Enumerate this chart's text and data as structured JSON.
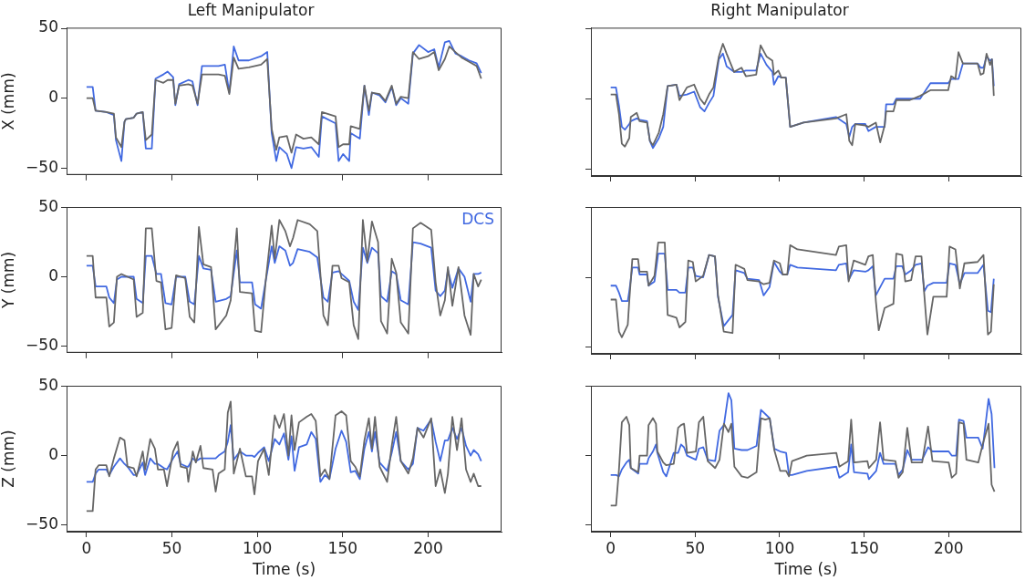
{
  "chart_data": [
    {
      "type": "line",
      "title": "Left Manipulator",
      "ylabel": "X (mm)",
      "tick_labels": "y",
      "xlim": [
        -11.7,
        243
      ],
      "ylim": [
        -54.9,
        50.4
      ],
      "xticks": [
        0,
        50,
        100,
        150,
        200
      ],
      "yticks": [
        -50,
        0,
        50
      ],
      "x": [
        0,
        3.6,
        5.3,
        11.6,
        16,
        17.2,
        20.4,
        22.2,
        23,
        27.6,
        29.3,
        32.9,
        34.7,
        38.2,
        40.4,
        45,
        47.5,
        50.7,
        52,
        54.2,
        59.6,
        62,
        65,
        67.6,
        77.3,
        81,
        83.6,
        86.2,
        89,
        95,
        102.2,
        105.8,
        108.4,
        111.1,
        112.9,
        117.3,
        120,
        122.7,
        127,
        131.6,
        136,
        137.8,
        145.8,
        147.6,
        150.2,
        153.8,
        154.7,
        160,
        162.7,
        165.3,
        167.1,
        171.6,
        175,
        178.7,
        181.3,
        184,
        188.4,
        191.1,
        194.7,
        200,
        203.6,
        206.2,
        209.8,
        212.4,
        216,
        219.6,
        224,
        228.4,
        231.1
      ],
      "series": [
        {
          "color": "#666666",
          "values": [
            0,
            0,
            -9,
            -10,
            -11,
            -28,
            -35,
            -17,
            -15,
            -14,
            -11,
            -10,
            -30,
            -26,
            13,
            11,
            13,
            13,
            -4,
            9,
            10,
            9,
            -4,
            17,
            17,
            16,
            3,
            29,
            21,
            22,
            24,
            28,
            -22,
            -37,
            -28,
            -27,
            -39,
            -26,
            -29,
            -28,
            -33,
            -10,
            -13,
            -35,
            -33,
            -33,
            -20,
            -22,
            9,
            -9,
            4,
            3,
            -2,
            9,
            -4,
            1,
            0,
            33,
            28,
            30,
            33,
            20,
            28,
            37,
            33,
            29,
            26,
            23,
            14
          ]
        },
        {
          "color": "#4169e1",
          "values": [
            8,
            8,
            -9,
            -10,
            -12,
            -30,
            -45,
            -17,
            -15,
            -14,
            -11,
            -10,
            -36,
            -36,
            14,
            17,
            19,
            15,
            -5,
            10,
            13,
            12,
            -5,
            23,
            23,
            24,
            4,
            37,
            27,
            27,
            30,
            33,
            -25,
            -45,
            -35,
            -40,
            -50,
            -35,
            -36,
            -35,
            -42,
            -13,
            -18,
            -45,
            -40,
            -45,
            -25,
            -29,
            9,
            -12,
            4,
            2,
            -3,
            8,
            -5,
            0,
            -4,
            32,
            38,
            33,
            35,
            22,
            40,
            41,
            32,
            30,
            27,
            25,
            18
          ]
        }
      ]
    },
    {
      "type": "line",
      "title": "Right Manipulator",
      "tick_labels": false,
      "xlim": [
        -11.7,
        243
      ],
      "ylim": [
        -54.9,
        50.4
      ],
      "xticks": [
        0,
        50,
        100,
        150,
        200
      ],
      "yticks": [
        -50,
        0,
        50
      ],
      "x": [
        0,
        3.1,
        4.9,
        6.6,
        8.4,
        11,
        11.9,
        15.4,
        17.1,
        21.5,
        23.2,
        25,
        28.5,
        31.1,
        33.7,
        38.9,
        40.7,
        45.1,
        49.4,
        52.9,
        55.5,
        58.2,
        60.8,
        64,
        66.4,
        68.6,
        73,
        77.4,
        80,
        86.1,
        88.7,
        92.2,
        95.7,
        96.6,
        99.2,
        101,
        103.6,
        106.2,
        114.1,
        133.3,
        139.4,
        141.2,
        142.9,
        144.7,
        150.7,
        152.5,
        156.9,
        159.5,
        162.1,
        163,
        167.3,
        169,
        177,
        183.1,
        189.2,
        199.7,
        201.5,
        204,
        205.8,
        208.4,
        217.1,
        218.9,
        220.6,
        222.4,
        224.5,
        225.6,
        226.7
      ],
      "series": [
        {
          "color": "#666666",
          "values": [
            3,
            3,
            -11,
            -32,
            -34,
            -28,
            -13,
            -10,
            -16,
            -17,
            -30,
            -33,
            -24,
            -11,
            9,
            10,
            -1,
            8,
            10,
            0,
            -4,
            3,
            8,
            30,
            39,
            32,
            19,
            22,
            16,
            17,
            38,
            30,
            27,
            17,
            20,
            15,
            15,
            -20,
            -17,
            -14,
            -11,
            -30,
            -33,
            -18,
            -19,
            -20,
            -17,
            -31,
            -19,
            -9,
            -9,
            -1,
            -1,
            2,
            6,
            6,
            16,
            14,
            33,
            25,
            25,
            17,
            18,
            32,
            24,
            28,
            2
          ]
        },
        {
          "color": "#4169e1",
          "values": [
            8,
            8,
            -5,
            -20,
            -22,
            -18,
            -16,
            -14,
            -15,
            -16,
            -30,
            -35,
            -28,
            -20,
            9,
            10,
            2,
            3,
            5,
            -6,
            -9,
            -3,
            2,
            28,
            32,
            23,
            19,
            19,
            20,
            20,
            32,
            24,
            19,
            10,
            16,
            15,
            15,
            -20,
            -17,
            -13,
            -18,
            -27,
            -20,
            -18,
            -18,
            -23,
            -20,
            -20,
            -20,
            -4,
            -4,
            0,
            0,
            0,
            11,
            11,
            14,
            14,
            14,
            25,
            25,
            22,
            22,
            30,
            27,
            28,
            9
          ]
        }
      ]
    },
    {
      "type": "line",
      "ylabel": "Y (mm)",
      "tick_labels": "y",
      "legend": "top right",
      "xlim": [
        -11.7,
        243
      ],
      "ylim": [
        -54.9,
        50.4
      ],
      "xticks": [
        0,
        50,
        100,
        150,
        200
      ],
      "yticks": [
        -50,
        0,
        50
      ],
      "x": [
        0,
        3.6,
        5.3,
        11.6,
        13.3,
        16,
        17.8,
        20.4,
        27.6,
        29.3,
        32.9,
        34.7,
        38.2,
        40.9,
        43.6,
        46.2,
        49.8,
        52.4,
        57.8,
        60.4,
        63.1,
        65.8,
        68.4,
        72.9,
        75.6,
        81.8,
        84.4,
        88,
        89.8,
        96.9,
        98.7,
        102.2,
        104.9,
        108.4,
        110.2,
        112.9,
        116.4,
        119.1,
        120.9,
        123.6,
        130.7,
        135.1,
        138.7,
        141.3,
        144,
        147.6,
        149.3,
        153.8,
        156.4,
        159.1,
        161.8,
        164.4,
        167.1,
        170.7,
        172.4,
        176,
        178.7,
        181.3,
        184,
        188.4,
        191.1,
        195.6,
        201.8,
        204.4,
        207.1,
        209.8,
        211.6,
        214.2,
        217.8,
        221.3,
        224.9,
        226.7,
        229.3,
        231.1
      ],
      "series": [
        {
          "color": "#666666",
          "values": [
            15,
            15,
            -15,
            -15,
            -36,
            -33,
            0,
            2,
            -2,
            -29,
            -26,
            35,
            35,
            -3,
            -4,
            -38,
            -37,
            1,
            -1,
            -29,
            -33,
            36,
            9,
            7,
            -38,
            -28,
            -17,
            35,
            -11,
            -12,
            -39,
            -40,
            -3,
            37,
            13,
            41,
            33,
            22,
            28,
            41,
            38,
            33,
            -28,
            -35,
            8,
            8,
            -1,
            -4,
            -35,
            -45,
            41,
            11,
            40,
            25,
            -32,
            -41,
            13,
            3,
            -33,
            -41,
            35,
            39,
            34,
            -4,
            -28,
            -17,
            7,
            -21,
            7,
            -28,
            -42,
            2,
            -7,
            -2
          ]
        },
        {
          "name": "DCS",
          "color": "#4169e1",
          "values": [
            8,
            8,
            -7,
            -7,
            -15,
            -19,
            -2,
            0,
            0,
            -16,
            -19,
            15,
            15,
            2,
            2,
            -19,
            -20,
            0,
            0,
            -18,
            -20,
            15,
            6,
            5,
            -18,
            -16,
            -14,
            19,
            -4,
            -4,
            -20,
            -23,
            -3,
            22,
            10,
            22,
            19,
            8,
            10,
            20,
            18,
            14,
            -15,
            -18,
            3,
            4,
            2,
            -3,
            -18,
            -24,
            21,
            10,
            21,
            17,
            -14,
            -18,
            4,
            2,
            -17,
            -20,
            25,
            24,
            21,
            -10,
            -14,
            -10,
            5,
            -8,
            6,
            0,
            -18,
            2,
            2,
            3
          ]
        }
      ]
    },
    {
      "type": "line",
      "tick_labels": false,
      "xlim": [
        -11.7,
        243
      ],
      "ylim": [
        -54.9,
        50.4
      ],
      "xticks": [
        0,
        50,
        100,
        150,
        200
      ],
      "yticks": [
        -50,
        0,
        50
      ],
      "x": [
        0,
        3.1,
        4.9,
        6.6,
        10.1,
        11,
        12.8,
        16.2,
        17.1,
        21.5,
        22.4,
        25.9,
        28.1,
        32,
        33.7,
        38.9,
        40.7,
        44.2,
        45.9,
        48.6,
        50.3,
        54.7,
        58.2,
        61.7,
        63.5,
        66.9,
        72.1,
        73.9,
        79.1,
        80.9,
        87.8,
        90.5,
        94,
        96.6,
        100.1,
        101.8,
        104.5,
        106.2,
        110.5,
        133.3,
        135,
        139.4,
        140.8,
        143.8,
        150.7,
        152.5,
        155.1,
        156.9,
        158.6,
        162.1,
        167.3,
        169,
        172.5,
        174.3,
        177.8,
        180.4,
        183.9,
        185.6,
        187.4,
        190.9,
        198.8,
        200.5,
        204,
        206.6,
        209.3,
        217.1,
        220.6,
        223.2,
        225,
        226.7
      ],
      "series": [
        {
          "color": "#666666",
          "values": [
            -16,
            -16,
            -39,
            -43,
            -34,
            -17,
            13,
            13,
            4,
            4,
            -6,
            1,
            25,
            25,
            -27,
            -29,
            -36,
            -32,
            12,
            11,
            -3,
            1,
            16,
            15,
            -13,
            -39,
            -40,
            9,
            6,
            -2,
            -3,
            -5,
            -4,
            12,
            10,
            2,
            2,
            23,
            20,
            16,
            22,
            23,
            -3,
            12,
            9,
            15,
            16,
            -17,
            -38,
            -22,
            -19,
            17,
            16,
            -3,
            -2,
            15,
            15,
            -13,
            -41,
            -14,
            -14,
            22,
            20,
            -8,
            10,
            11,
            16,
            -41,
            -39,
            -5
          ]
        },
        {
          "color": "#4169e1",
          "values": [
            -6,
            -6,
            -11,
            -17,
            -17,
            -10,
            7,
            7,
            2,
            2,
            -6,
            -3,
            17,
            17,
            -9,
            -9,
            -11,
            -11,
            7,
            7,
            1,
            0,
            16,
            15,
            -14,
            -35,
            -27,
            5,
            3,
            -1,
            -2,
            -13,
            -7,
            11,
            4,
            2,
            2,
            9,
            7,
            5,
            9,
            10,
            -2,
            5,
            4,
            5,
            8,
            -13,
            -9,
            -1,
            -1,
            8,
            8,
            2,
            5,
            9,
            10,
            -10,
            -6,
            -4,
            -4,
            10,
            9,
            -5,
            3,
            3,
            9,
            -24,
            -25,
            -1
          ]
        }
      ]
    },
    {
      "type": "line",
      "ylabel": "Z (mm)",
      "xlabel": "Time (s)",
      "xlim": [
        -11.7,
        243
      ],
      "ylim": [
        -54.9,
        50.4
      ],
      "xticks": [
        0,
        50,
        100,
        150,
        200
      ],
      "yticks": [
        -50,
        0,
        50
      ],
      "x": [
        0,
        3.6,
        5.3,
        7.1,
        11.6,
        13.3,
        16,
        19.6,
        22.2,
        24,
        27.6,
        29.3,
        32.9,
        34.3,
        37.3,
        40,
        41.8,
        45.3,
        47.1,
        50.7,
        53.3,
        55.1,
        58.7,
        59.6,
        62.2,
        64,
        66.7,
        68.4,
        73.8,
        75.6,
        77.3,
        80.9,
        82.7,
        84.4,
        86.2,
        89.8,
        93.3,
        96.9,
        98.3,
        100.4,
        104,
        106.7,
        110.2,
        112.9,
        115.6,
        118.2,
        120,
        121.8,
        124.4,
        128.9,
        131.6,
        134.2,
        136.9,
        139.6,
        142.2,
        145.8,
        149.3,
        152,
        154.7,
        157.3,
        160,
        162.7,
        165.3,
        167.1,
        168.9,
        171.6,
        176,
        178.7,
        181.3,
        184,
        188.4,
        191.1,
        193.8,
        197.3,
        201.8,
        204.4,
        207.1,
        209.8,
        211.6,
        214.2,
        216.9,
        219.6,
        222.2,
        224.9,
        226.7,
        229.3,
        231.1
      ],
      "series": [
        {
          "color": "#666666",
          "values": [
            -40,
            -40,
            -10,
            -7,
            -7,
            -15,
            -2,
            13,
            11,
            -8,
            -9,
            -15,
            3,
            -10,
            12,
            5,
            -10,
            -10,
            -22,
            3,
            10,
            -8,
            -9,
            -19,
            3,
            -5,
            7,
            -9,
            -10,
            -26,
            -13,
            -10,
            31,
            39,
            -13,
            5,
            -15,
            -15,
            -28,
            -4,
            5,
            -14,
            29,
            20,
            30,
            0,
            29,
            4,
            24,
            28,
            30,
            25,
            -15,
            -10,
            -17,
            29,
            32,
            29,
            -4,
            -8,
            -15,
            11,
            27,
            5,
            28,
            -8,
            -19,
            7,
            28,
            -4,
            -13,
            -2,
            20,
            13,
            27,
            -22,
            -10,
            -27,
            -13,
            28,
            4,
            27,
            -10,
            -19,
            -13,
            -22,
            -22
          ]
        },
        {
          "color": "#4169e1",
          "values": [
            -19,
            -19,
            -13,
            -10,
            -10,
            -14,
            -8,
            -2,
            -6,
            -8,
            -14,
            -14,
            -5,
            -14,
            -2,
            -6,
            -6,
            -9,
            -10,
            -2,
            3,
            -6,
            -8,
            -8,
            -2,
            -4,
            -2,
            -2,
            -2,
            -2,
            0,
            3,
            10,
            22,
            -3,
            3,
            0,
            0,
            -1,
            2,
            6,
            -4,
            12,
            8,
            16,
            -3,
            14,
            -11,
            6,
            8,
            17,
            12,
            -19,
            -14,
            -17,
            5,
            18,
            10,
            -12,
            -11,
            -17,
            5,
            17,
            3,
            17,
            -5,
            -11,
            2,
            17,
            -4,
            -10,
            -6,
            20,
            18,
            26,
            10,
            -4,
            11,
            11,
            20,
            12,
            20,
            7,
            0,
            4,
            1,
            -4
          ]
        }
      ]
    },
    {
      "type": "line",
      "xlabel": "Time (s)",
      "tick_labels": "x",
      "xlim": [
        -11.7,
        243
      ],
      "ylim": [
        -54.9,
        50.4
      ],
      "xticks": [
        0,
        50,
        100,
        150,
        200
      ],
      "yticks": [
        -50,
        0,
        50
      ],
      "x": [
        0,
        3.2,
        4.9,
        6.6,
        9.3,
        11,
        11.9,
        16.3,
        17.1,
        21.5,
        22.4,
        25,
        26.8,
        27.6,
        31.1,
        32.9,
        37.3,
        39.9,
        41.6,
        43.4,
        45.2,
        50.4,
        52.2,
        54.8,
        57.4,
        61.8,
        64.4,
        67,
        69.7,
        71.4,
        73.2,
        77.5,
        81,
        86.3,
        88.9,
        91.5,
        94.1,
        96.8,
        100.3,
        103.8,
        105.5,
        107.3,
        116,
        133.5,
        135.3,
        140.5,
        142.3,
        144,
        151.9,
        152.8,
        157.1,
        159.4,
        161.5,
        168.5,
        170.3,
        172.8,
        175.5,
        178.1,
        184.3,
        187.8,
        190.4,
        200,
        201.8,
        204.4,
        206.1,
        208.8,
        210.5,
        217.5,
        220.1,
        223.6,
        225.4,
        227.1
      ],
      "series": [
        {
          "color": "#666666",
          "values": [
            -36,
            -36,
            -10,
            24,
            28,
            22,
            -9,
            -12,
            0,
            0,
            22,
            27,
            23,
            3,
            -5,
            -7,
            -6,
            20,
            22,
            23,
            2,
            3,
            24,
            28,
            -4,
            -9,
            -3,
            23,
            17,
            23,
            -8,
            -15,
            -16,
            -12,
            27,
            26,
            27,
            4,
            -11,
            -11,
            -15,
            -4,
            0,
            2,
            -8,
            -4,
            26,
            -5,
            -4,
            -9,
            -3,
            24,
            -3,
            -4,
            -16,
            -12,
            20,
            -5,
            -5,
            21,
            -4,
            -5,
            -16,
            -13,
            24,
            23,
            -3,
            -5,
            8,
            23,
            -21,
            -26
          ]
        },
        {
          "color": "#4169e1",
          "values": [
            -14,
            -14,
            -15,
            -10,
            -5,
            -3,
            -9,
            -13,
            -6,
            -6,
            -2,
            3,
            8,
            2,
            -12,
            -15,
            2,
            2,
            8,
            6,
            0,
            -3,
            5,
            6,
            -3,
            -4,
            18,
            22,
            45,
            40,
            5,
            4,
            4,
            7,
            33,
            30,
            27,
            5,
            3,
            2,
            -14,
            -14,
            -11,
            -8,
            -16,
            -12,
            8,
            -12,
            -13,
            -17,
            -11,
            2,
            -6,
            -6,
            -14,
            -10,
            4,
            -3,
            -3,
            6,
            3,
            3,
            0,
            0,
            26,
            25,
            13,
            13,
            5,
            41,
            30,
            -9
          ]
        }
      ]
    }
  ]
}
